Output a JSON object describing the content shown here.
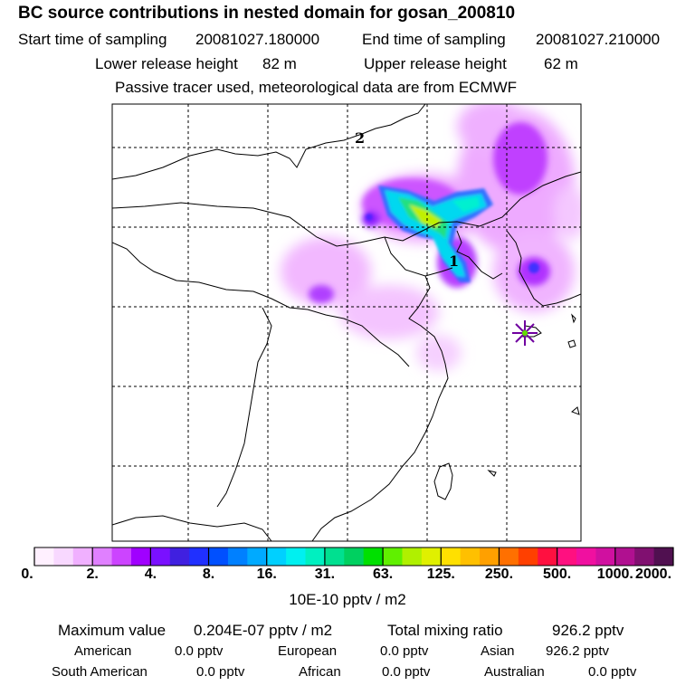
{
  "header": {
    "title": "BC  source contributions in nested domain for gosan_200810",
    "start_label": "Start time of sampling",
    "start_value": "20081027.180000",
    "end_label": "End time of sampling",
    "end_value": "20081027.210000",
    "lower_label": "Lower release height",
    "lower_value": "82 m",
    "upper_label": "Upper release height",
    "upper_value": "62 m",
    "note": "Passive tracer used, meteorological data are from ECMWF"
  },
  "map": {
    "markers": [
      {
        "label": "1",
        "kind": "release-point"
      },
      {
        "label": "2",
        "kind": "contour-label"
      }
    ],
    "station_marker": "asterisk-star"
  },
  "colorbar": {
    "tick_labels": [
      "0.",
      "2.",
      "4.",
      "8.",
      "16.",
      "31.",
      "63.",
      "125.",
      "250.",
      "500.",
      "1000.",
      "2000."
    ],
    "colors": [
      "#fff0ff",
      "#f8d8ff",
      "#f0b0ff",
      "#e080ff",
      "#cc44ff",
      "#a000ff",
      "#7a10ff",
      "#4020e0",
      "#2030ff",
      "#0050ff",
      "#0080ff",
      "#00aaff",
      "#00d0ff",
      "#00f0f0",
      "#00f0c0",
      "#00e090",
      "#00d060",
      "#00e000",
      "#60f000",
      "#b0f000",
      "#e0f000",
      "#ffe000",
      "#ffc000",
      "#ffa000",
      "#ff7000",
      "#ff4000",
      "#ff1040",
      "#ff1080",
      "#f010a0",
      "#d010a0",
      "#b01090",
      "#801070",
      "#501050"
    ],
    "unit": "10E-10 pptv / m2"
  },
  "stats": {
    "max_label": "Maximum value",
    "max_value": "0.204E-07 pptv / m2",
    "total_label": "Total mixing ratio",
    "total_value": "926.2 pptv",
    "regions": [
      {
        "name": "American",
        "value": "0.0 pptv"
      },
      {
        "name": "European",
        "value": "0.0 pptv"
      },
      {
        "name": "Asian",
        "value": "926.2 pptv"
      },
      {
        "name": "South American",
        "value": "0.0 pptv"
      },
      {
        "name": "African",
        "value": "0.0 pptv"
      },
      {
        "name": "Australian",
        "value": "0.0 pptv"
      }
    ]
  }
}
